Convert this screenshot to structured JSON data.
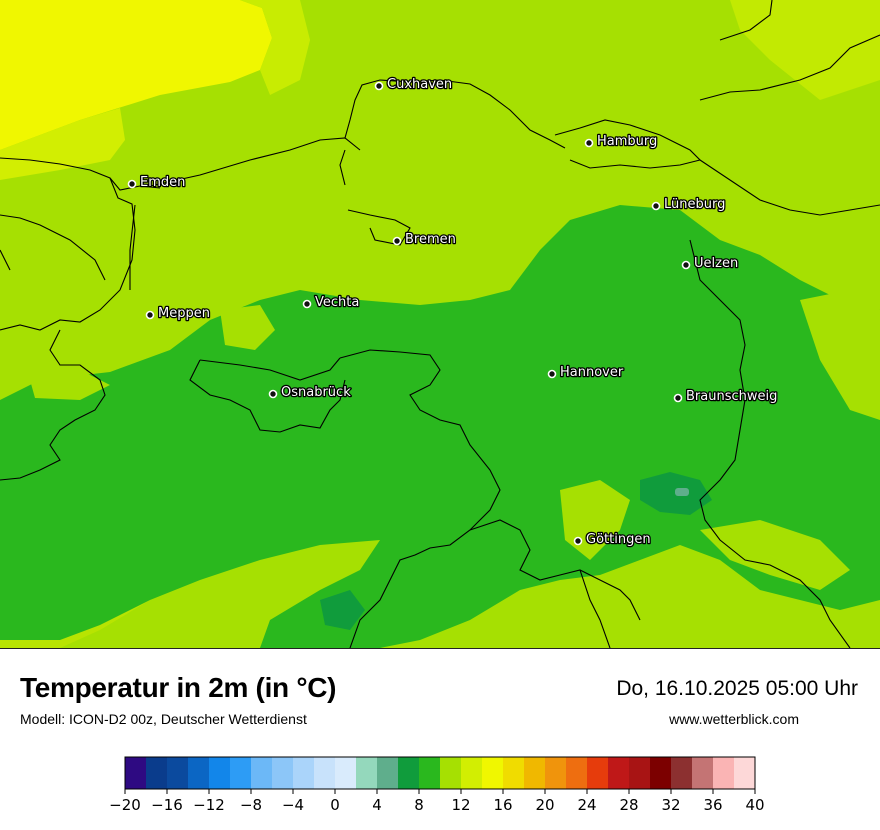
{
  "title": "Temperatur in 2m (in °C)",
  "model": "Modell: ICON-D2 00z, Deutscher Wetterdienst",
  "datetime": "Do, 16.10.2025 05:00 Uhr",
  "website": "www.wetterblick.com",
  "cities": [
    {
      "name": "Cuxhaven"
    },
    {
      "name": "Hamburg"
    },
    {
      "name": "Emden"
    },
    {
      "name": "Lüneburg"
    },
    {
      "name": "Bremen"
    },
    {
      "name": "Uelzen"
    },
    {
      "name": "Vechta"
    },
    {
      "name": "Meppen"
    },
    {
      "name": "Hannover"
    },
    {
      "name": "Osnabrück"
    },
    {
      "name": "Braunschweig"
    },
    {
      "name": "Göttingen"
    }
  ],
  "legend": {
    "colors": [
      "#2e0a82",
      "#0a3c8c",
      "#0b4a9e",
      "#0b66c4",
      "#1286ea",
      "#2d9cf5",
      "#6cb8f7",
      "#8cc6f8",
      "#aad4fa",
      "#c8e2fb",
      "#d9ebfc",
      "#94d8bc",
      "#5fae8c",
      "#109c3c",
      "#2ab81e",
      "#a6e002",
      "#d2ee02",
      "#f0f700",
      "#f0dc00",
      "#f0b800",
      "#f0940c",
      "#ee6e10",
      "#e63c0c",
      "#bf1818",
      "#a81414",
      "#7c0000",
      "#8c3030",
      "#c47474",
      "#fab4b4",
      "#fdd8d8"
    ],
    "tick_labels": [
      "−20",
      "−16",
      "−12",
      "−8",
      "−4",
      "0",
      "4",
      "8",
      "12",
      "16",
      "20",
      "24",
      "28",
      "32",
      "36",
      "40"
    ]
  }
}
